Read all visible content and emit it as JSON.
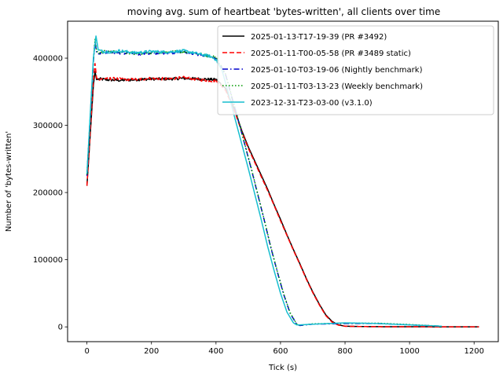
{
  "chart_data": {
    "type": "line",
    "title": "moving avg. sum of heartbeat 'bytes-written', all clients over time",
    "xlabel": "Tick (s)",
    "ylabel": "Number of 'bytes-written'",
    "xlim": [
      -60,
      1275
    ],
    "ylim": [
      -22000,
      455000
    ],
    "x_ticks": [
      0,
      200,
      400,
      600,
      800,
      1000,
      1200
    ],
    "y_ticks": [
      0,
      100000,
      200000,
      300000,
      400000
    ],
    "x_tick_labels": [
      "0",
      "200",
      "400",
      "600",
      "800",
      "1000",
      "1200"
    ],
    "y_tick_labels": [
      "0",
      "100000",
      "200000",
      "300000",
      "400000"
    ],
    "grid": false,
    "legend_position": "top-right",
    "series": [
      {
        "name": "2025-01-13-T17-19-39 (PR #3492)",
        "color": "#000000",
        "dash": "solid",
        "x": [
          0,
          10,
          20,
          25,
          30,
          40,
          60,
          100,
          150,
          200,
          250,
          300,
          350,
          400,
          430,
          460,
          480,
          500,
          520,
          540,
          560,
          580,
          600,
          620,
          640,
          660,
          680,
          700,
          720,
          740,
          760,
          780,
          800,
          850,
          900,
          1000,
          1100,
          1215
        ],
        "y": [
          210000,
          285000,
          360000,
          380000,
          368000,
          369000,
          368000,
          367000,
          368000,
          369000,
          369000,
          370000,
          369000,
          368000,
          355000,
          320000,
          292000,
          268000,
          247000,
          226000,
          205000,
          182000,
          160000,
          137000,
          115000,
          94000,
          72000,
          52000,
          34000,
          18000,
          8000,
          3000,
          1000,
          500,
          300,
          200,
          100,
          0
        ]
      },
      {
        "name": "2025-01-11-T00-05-58 (PR #3489 static)",
        "color": "#ff0000",
        "dash": "dashed",
        "x": [
          0,
          10,
          20,
          25,
          30,
          40,
          60,
          100,
          150,
          200,
          250,
          300,
          350,
          400,
          430,
          460,
          480,
          500,
          520,
          540,
          560,
          580,
          600,
          620,
          640,
          660,
          680,
          700,
          720,
          740,
          760,
          780,
          800,
          850,
          900,
          1000,
          1100,
          1215
        ],
        "y": [
          210000,
          290000,
          368000,
          392000,
          370000,
          369000,
          370000,
          369000,
          368000,
          370000,
          369000,
          371000,
          368000,
          366000,
          352000,
          318000,
          290000,
          266000,
          245000,
          224000,
          203000,
          181000,
          158000,
          136000,
          114000,
          93000,
          71000,
          51000,
          33000,
          17000,
          7000,
          2500,
          1000,
          500,
          300,
          200,
          100,
          0
        ]
      },
      {
        "name": "2025-01-10-T03-19-06 (Nightly benchmark)",
        "color": "#0000cc",
        "dash": "dashdot",
        "x": [
          0,
          10,
          20,
          25,
          30,
          40,
          60,
          100,
          150,
          200,
          250,
          300,
          350,
          400,
          430,
          450,
          470,
          490,
          510,
          530,
          550,
          570,
          590,
          610,
          630,
          650,
          660,
          680,
          700,
          800,
          900,
          1000,
          1100
        ],
        "y": [
          225000,
          310000,
          395000,
          425000,
          408000,
          407000,
          409000,
          408000,
          406000,
          407000,
          408000,
          409000,
          405000,
          400000,
          375000,
          340000,
          306000,
          270000,
          234000,
          196000,
          158000,
          118000,
          82000,
          48000,
          20000,
          4000,
          2000,
          3000,
          4000,
          5000,
          5000,
          3000,
          1000
        ]
      },
      {
        "name": "2025-01-11-T03-13-23 (Weekly benchmark)",
        "color": "#009900",
        "dash": "dotted",
        "x": [
          0,
          10,
          20,
          25,
          30,
          40,
          60,
          100,
          150,
          200,
          250,
          300,
          350,
          400,
          430,
          450,
          470,
          490,
          510,
          530,
          550,
          570,
          590,
          610,
          630,
          650,
          660,
          680,
          700,
          800,
          900,
          1000,
          1100
        ],
        "y": [
          227000,
          312000,
          397000,
          428000,
          410000,
          408000,
          410000,
          409000,
          407000,
          408000,
          409000,
          410000,
          406000,
          401000,
          376000,
          341000,
          307000,
          271000,
          235000,
          197000,
          159000,
          119000,
          83000,
          49000,
          21000,
          4500,
          2500,
          3500,
          4500,
          5500,
          5500,
          3500,
          1000
        ]
      },
      {
        "name": "2023-12-31-T23-03-00 (v3.1.0)",
        "color": "#17becf",
        "dash": "solid",
        "x": [
          0,
          10,
          20,
          25,
          28,
          35,
          50,
          80,
          100,
          150,
          200,
          250,
          300,
          350,
          380,
          400,
          420,
          440,
          460,
          480,
          500,
          520,
          540,
          560,
          580,
          600,
          620,
          640,
          650,
          660,
          700,
          750,
          800,
          850,
          900,
          1000,
          1100
        ],
        "y": [
          228000,
          315000,
          400000,
          420000,
          433000,
          412000,
          410000,
          409000,
          411000,
          408000,
          410000,
          409000,
          411000,
          406000,
          403000,
          398000,
          380000,
          345000,
          308000,
          272000,
          236000,
          198000,
          160000,
          120000,
          84000,
          50000,
          22000,
          6000,
          3000,
          3000,
          4000,
          5000,
          6000,
          5500,
          5000,
          3000,
          1000
        ]
      }
    ]
  }
}
